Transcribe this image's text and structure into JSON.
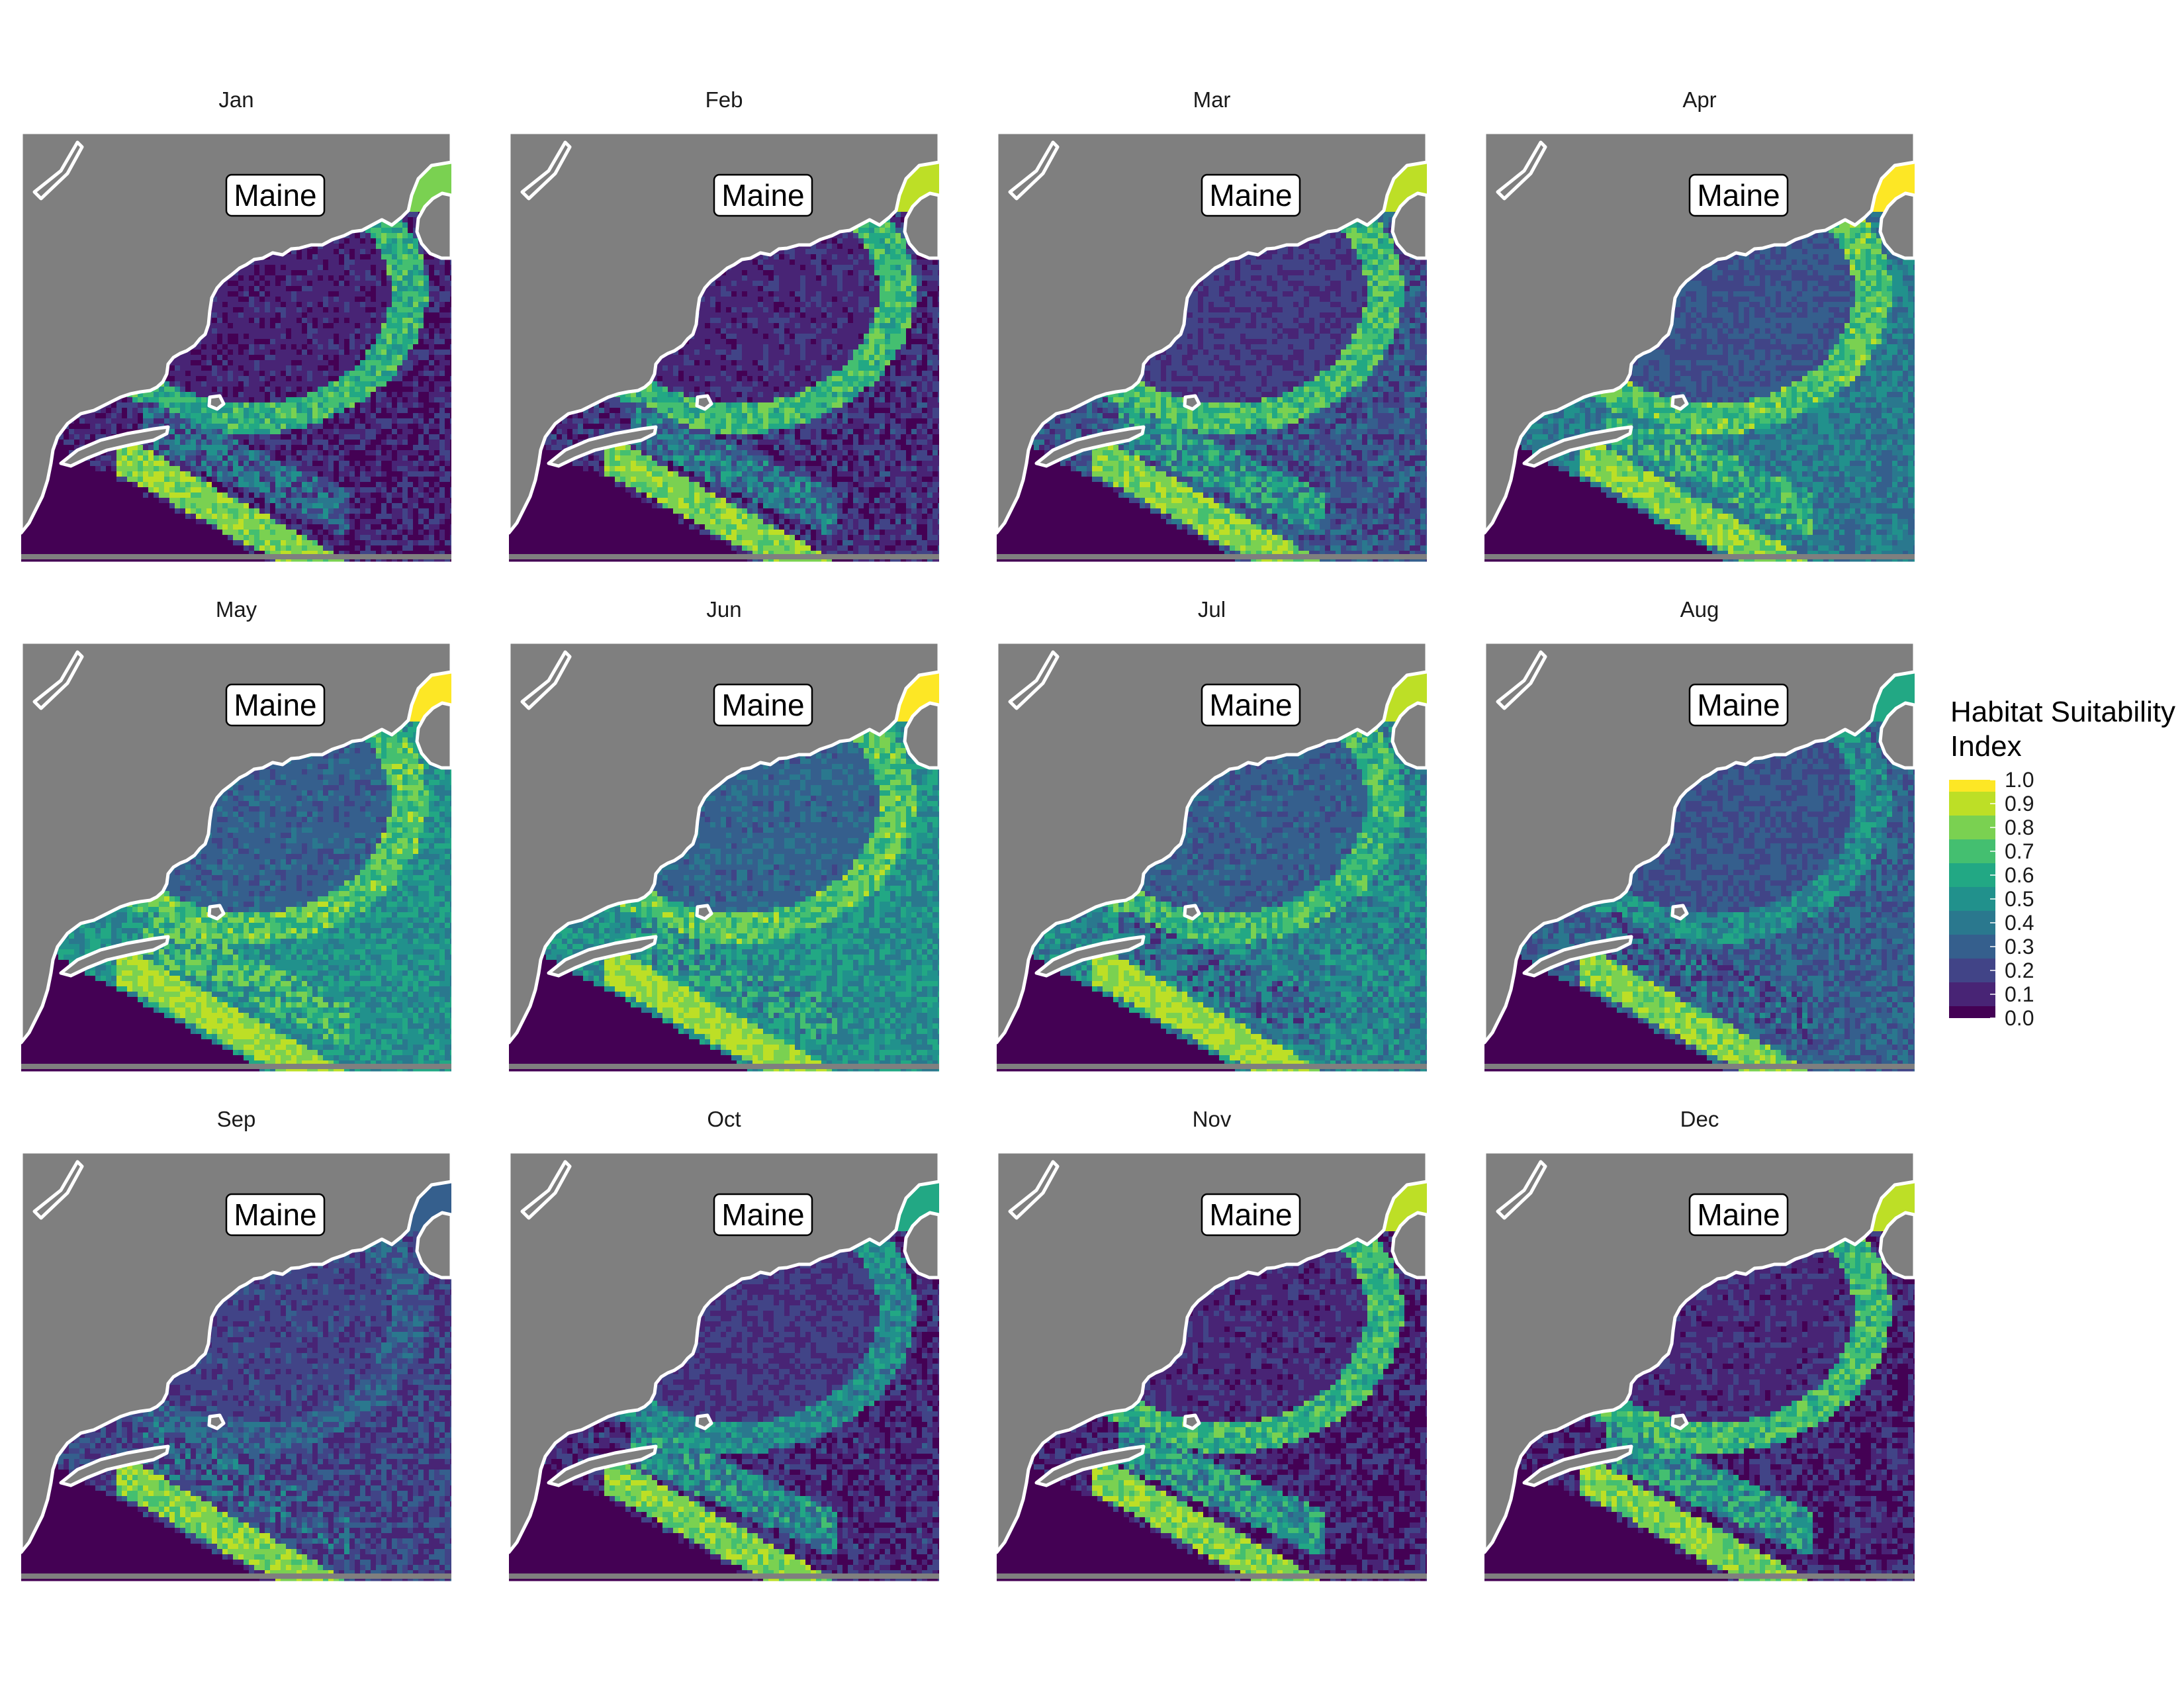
{
  "chart_data": {
    "type": "heatmap",
    "description_title": "",
    "facet_titles": [
      "Jan",
      "Feb",
      "Mar",
      "Apr",
      "May",
      "Jun",
      "Jul",
      "Aug",
      "Sep",
      "Oct",
      "Nov",
      "Dec"
    ],
    "map_label": "Maine",
    "legend": {
      "title_line1": "Habitat Suitability",
      "title_line2": "Index",
      "breaks": [
        "1.0",
        "0.9",
        "0.8",
        "0.7",
        "0.6",
        "0.5",
        "0.4",
        "0.3",
        "0.2",
        "0.1",
        "0.0"
      ],
      "colors": [
        "#fde725",
        "#bddf26",
        "#7ad151",
        "#44bf70",
        "#22a884",
        "#21918c",
        "#2a788e",
        "#355f8d",
        "#414487",
        "#482475",
        "#440154"
      ]
    },
    "land_color": "#7f7f7f",
    "coast_color": "#ffffff",
    "monthly_mean_index": {
      "basin": [
        0.02,
        0.03,
        0.1,
        0.18,
        0.22,
        0.24,
        0.22,
        0.18,
        0.12,
        0.08,
        0.04,
        0.04
      ],
      "shelf": [
        0.05,
        0.08,
        0.2,
        0.35,
        0.45,
        0.45,
        0.4,
        0.25,
        0.15,
        0.06,
        0.04,
        0.05
      ],
      "coastal": [
        0.8,
        0.85,
        0.9,
        0.95,
        0.95,
        0.95,
        0.85,
        0.55,
        0.25,
        0.55,
        0.85,
        0.85
      ],
      "bank": [
        0.35,
        0.4,
        0.55,
        0.6,
        0.65,
        0.55,
        0.35,
        0.3,
        0.3,
        0.5,
        0.55,
        0.55
      ],
      "slope": [
        0.9,
        0.9,
        0.9,
        0.9,
        0.95,
        0.95,
        0.95,
        0.9,
        0.9,
        0.9,
        0.9,
        0.9
      ]
    }
  }
}
